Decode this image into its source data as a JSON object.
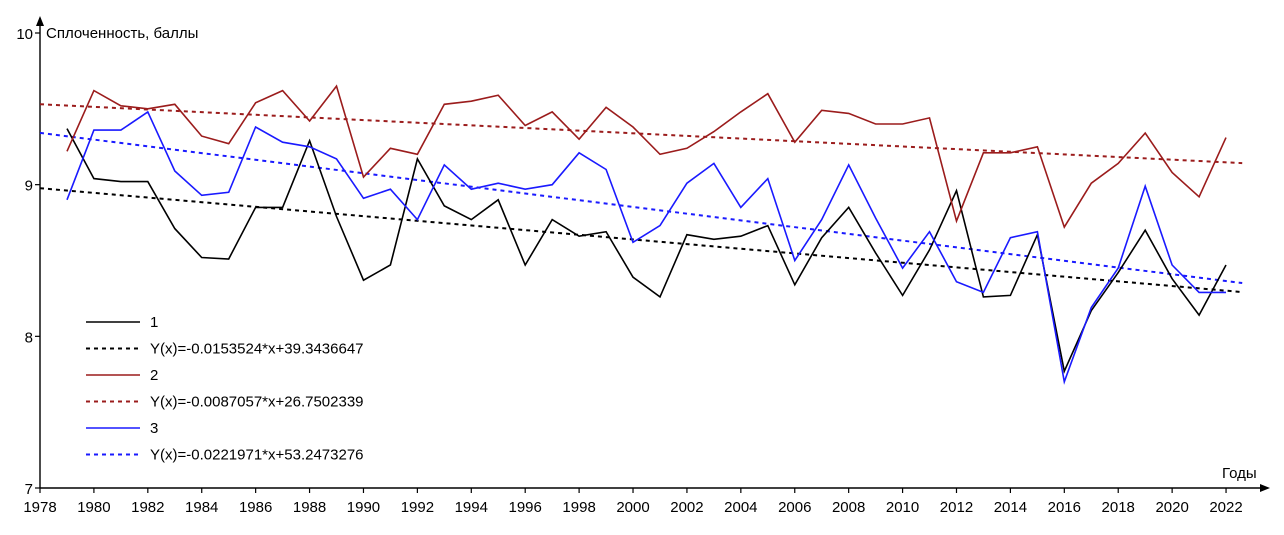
{
  "chart_data": {
    "type": "line",
    "title": "",
    "ylabel": "Сплоченность, баллы",
    "xlabel": "Годы",
    "xlim": [
      1978,
      2023
    ],
    "ylim": [
      7,
      10
    ],
    "x_ticks": [
      1978,
      1980,
      1982,
      1984,
      1986,
      1988,
      1990,
      1992,
      1994,
      1996,
      1998,
      2000,
      2002,
      2004,
      2006,
      2008,
      2010,
      2012,
      2014,
      2016,
      2018,
      2020,
      2022
    ],
    "y_ticks": [
      7,
      8,
      9,
      10
    ],
    "x_tick_labels": [
      "1978",
      "1980",
      "1982",
      "1984",
      "1986",
      "1988",
      "1990",
      "1992",
      "1994",
      "1996",
      "1998",
      "2000",
      "2002",
      "2004",
      "2006",
      "2008",
      "2010",
      "2012",
      "2014",
      "2016",
      "2018",
      "2020",
      "2022"
    ],
    "y_tick_labels": [
      "7",
      "8",
      "9",
      "10"
    ],
    "x": [
      1979,
      1980,
      1981,
      1982,
      1983,
      1984,
      1985,
      1986,
      1987,
      1988,
      1989,
      1990,
      1991,
      1992,
      1993,
      1994,
      1995,
      1996,
      1997,
      1998,
      1999,
      2000,
      2001,
      2002,
      2003,
      2004,
      2005,
      2006,
      2007,
      2008,
      2009,
      2010,
      2011,
      2012,
      2013,
      2014,
      2015,
      2016,
      2017,
      2018,
      2019,
      2020,
      2021,
      2022
    ],
    "series": [
      {
        "name": "1",
        "color": "#000000",
        "values": [
          9.37,
          9.04,
          9.02,
          9.02,
          8.71,
          8.52,
          8.51,
          8.85,
          8.85,
          9.29,
          8.79,
          8.37,
          8.47,
          9.17,
          8.86,
          8.77,
          8.9,
          8.47,
          8.77,
          8.66,
          8.69,
          8.39,
          8.26,
          8.67,
          8.64,
          8.66,
          8.73,
          8.34,
          8.65,
          8.85,
          8.55,
          8.27,
          8.57,
          8.96,
          8.26,
          8.27,
          8.67,
          7.77,
          8.17,
          8.42,
          8.7,
          8.38,
          8.14,
          8.47
        ]
      },
      {
        "name": "2",
        "color": "#9b1c1c",
        "values": [
          9.22,
          9.62,
          9.52,
          9.5,
          9.53,
          9.32,
          9.27,
          9.54,
          9.62,
          9.42,
          9.65,
          9.05,
          9.24,
          9.2,
          9.53,
          9.55,
          9.59,
          9.39,
          9.48,
          9.3,
          9.51,
          9.38,
          9.2,
          9.24,
          9.35,
          9.48,
          9.6,
          9.28,
          9.49,
          9.47,
          9.4,
          9.4,
          9.44,
          8.76,
          9.21,
          9.21,
          9.25,
          8.72,
          9.01,
          9.14,
          9.34,
          9.08,
          8.92,
          9.31
        ]
      },
      {
        "name": "3",
        "color": "#1a1aff",
        "values": [
          8.9,
          9.36,
          9.36,
          9.48,
          9.09,
          8.93,
          8.95,
          9.38,
          9.28,
          9.25,
          9.17,
          8.91,
          8.97,
          8.77,
          9.13,
          8.97,
          9.01,
          8.97,
          9.0,
          9.21,
          9.1,
          8.62,
          8.73,
          9.01,
          9.14,
          8.85,
          9.04,
          8.5,
          8.77,
          9.13,
          8.78,
          8.45,
          8.69,
          8.36,
          8.29,
          8.65,
          8.69,
          7.7,
          8.19,
          8.45,
          8.99,
          8.47,
          8.29,
          8.29
        ]
      }
    ],
    "trendlines": [
      {
        "label": "Y(x)=-0.0153524*x+39.3436647",
        "color": "#000000",
        "slope": -0.0153524,
        "intercept": 39.3436647
      },
      {
        "label": "Y(x)=-0.0087057*x+26.7502339",
        "color": "#9b1c1c",
        "slope": -0.0087057,
        "intercept": 26.7502339
      },
      {
        "label": "Y(x)=-0.0221971*x+53.2473276",
        "color": "#1a1aff",
        "slope": -0.0221971,
        "intercept": 53.2473276
      }
    ],
    "legend_placement": "lower-left",
    "grid": false
  }
}
